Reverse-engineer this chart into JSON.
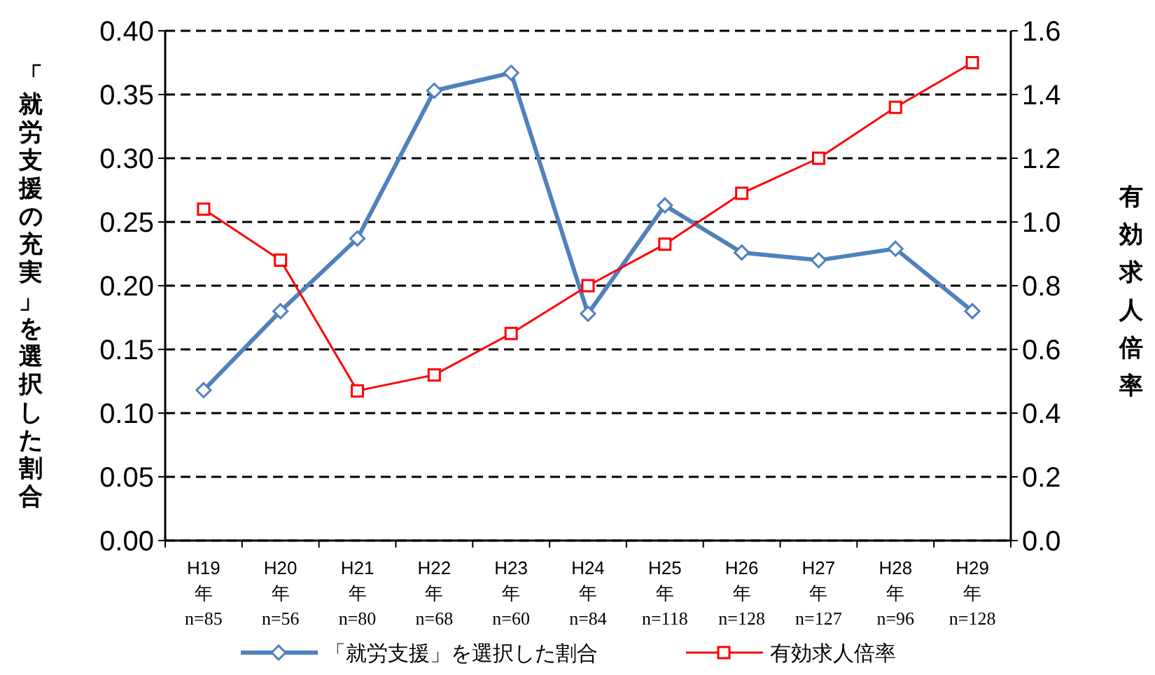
{
  "chart_data": {
    "type": "line",
    "ylabel": "「就労支援の充実」を選択した割合",
    "y2label": "有効求人倍率",
    "categories": [
      "H19\n年\nn=85",
      "H20\n年\nn=56",
      "H21\n年\nn=80",
      "H22\n年\nn=68",
      "H23\n年\nn=60",
      "H24\n年\nn=84",
      "H25\n年\nn=118",
      "H26\n年\nn=128",
      "H27\n年\nn=127",
      "H28\n年\nn=96",
      "H29\n年\nn=128"
    ],
    "series": [
      {
        "name": "「就労支援」を選択した割合",
        "color": "#4f81bd",
        "marker": "diamond",
        "values": [
          0.118,
          0.18,
          0.237,
          0.353,
          0.367,
          0.178,
          0.263,
          0.226,
          0.22,
          0.229,
          0.18
        ]
      },
      {
        "name": "有効求人倍率",
        "color": "#ff0000",
        "marker": "square",
        "axis": "y2",
        "values": [
          1.04,
          0.88,
          0.47,
          0.52,
          0.65,
          0.8,
          0.93,
          1.09,
          1.2,
          1.36,
          1.5
        ]
      }
    ],
    "ylim": [
      0,
      0.4
    ],
    "yticks": [
      {
        "value": 0,
        "label": "0.00"
      },
      {
        "value": 0.05,
        "label": "0.05"
      },
      {
        "value": 0.1,
        "label": "0.10"
      },
      {
        "value": 0.15,
        "label": "0.15"
      },
      {
        "value": 0.2,
        "label": "0.20"
      },
      {
        "value": 0.25,
        "label": "0.25"
      },
      {
        "value": 0.3,
        "label": "0.30"
      },
      {
        "value": 0.35,
        "label": "0.35"
      },
      {
        "value": 0.4,
        "label": "0.40"
      }
    ],
    "y2lim": [
      0,
      1.6
    ],
    "y2ticks": [
      {
        "value": 0,
        "label": "0.0"
      },
      {
        "value": 0.2,
        "label": "0.2"
      },
      {
        "value": 0.4,
        "label": "0.4"
      },
      {
        "value": 0.6,
        "label": "0.6"
      },
      {
        "value": 0.8,
        "label": "0.8"
      },
      {
        "value": 1,
        "label": "1.0"
      },
      {
        "value": 1.2,
        "label": "1.2"
      },
      {
        "value": 1.4,
        "label": "1.4"
      },
      {
        "value": 1.6,
        "label": "1.6"
      }
    ],
    "grid": "y",
    "legend": "bottom"
  }
}
